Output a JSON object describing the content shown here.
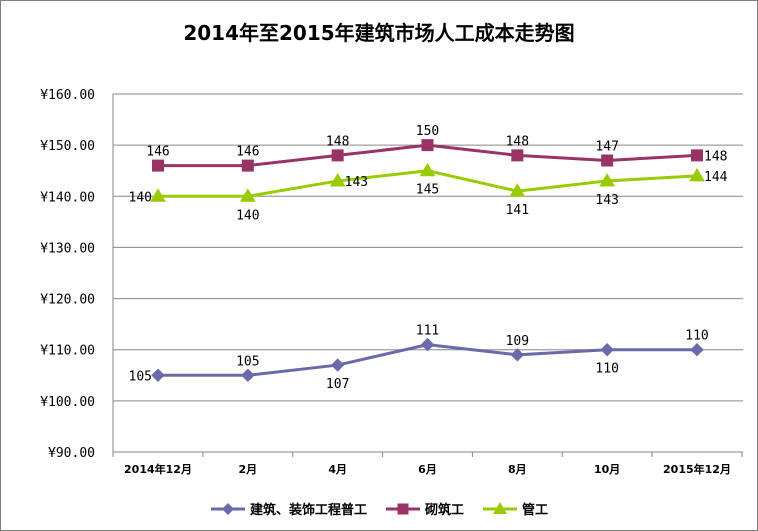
{
  "chart_data": {
    "type": "line",
    "title": "2014年至2015年建筑市场人工成本走势图",
    "categories": [
      "2014年12月",
      "2月",
      "4月",
      "6月",
      "8月",
      "10月",
      "2015年12月"
    ],
    "ylim": [
      90,
      160
    ],
    "yticks": [
      "¥160.00",
      "¥150.00",
      "¥140.00",
      "¥130.00",
      "¥120.00",
      "¥110.00",
      "¥100.00",
      "¥90.00"
    ],
    "grid": true,
    "legend_position": "bottom",
    "series": [
      {
        "name": "建筑、装饰工程普工",
        "values": [
          105,
          105,
          107,
          111,
          109,
          110,
          110
        ],
        "color": "#6A6AAA",
        "marker": "diamond",
        "label_pos": [
          "left",
          "above",
          "below",
          "above",
          "above",
          "below",
          "above"
        ]
      },
      {
        "name": "砌筑工",
        "values": [
          146,
          146,
          148,
          150,
          148,
          147,
          148
        ],
        "color": "#993366",
        "marker": "square",
        "label_pos": [
          "above",
          "above",
          "above",
          "above",
          "above",
          "above",
          "right"
        ]
      },
      {
        "name": "管工",
        "values": [
          140,
          140,
          143,
          145,
          141,
          143,
          144
        ],
        "color": "#99CC00",
        "marker": "triangle",
        "label_pos": [
          "left",
          "below",
          "right",
          "below",
          "below",
          "below",
          "right"
        ]
      }
    ]
  }
}
